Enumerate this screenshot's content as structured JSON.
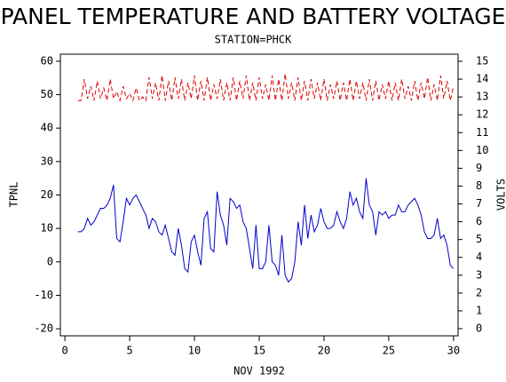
{
  "chart_data": {
    "type": "line",
    "title": "PANEL TEMPERATURE AND BATTERY VOLTAGE",
    "subtitle": "STATION=PHCK",
    "x_label": "NOV 1992",
    "y_label": "TPNL",
    "y2_label": "VOLTS",
    "x": [
      1,
      1.25,
      1.5,
      1.75,
      2,
      2.25,
      2.5,
      2.75,
      3,
      3.25,
      3.5,
      3.75,
      4,
      4.25,
      4.5,
      4.75,
      5,
      5.25,
      5.5,
      5.75,
      6,
      6.25,
      6.5,
      6.75,
      7,
      7.25,
      7.5,
      7.75,
      8,
      8.25,
      8.5,
      8.75,
      9,
      9.25,
      9.5,
      9.75,
      10,
      10.25,
      10.5,
      10.75,
      11,
      11.25,
      11.5,
      11.75,
      12,
      12.25,
      12.5,
      12.75,
      13,
      13.25,
      13.5,
      13.75,
      14,
      14.25,
      14.5,
      14.75,
      15,
      15.25,
      15.5,
      15.75,
      16,
      16.25,
      16.5,
      16.75,
      17,
      17.25,
      17.5,
      17.75,
      18,
      18.25,
      18.5,
      18.75,
      19,
      19.25,
      19.5,
      19.75,
      20,
      20.25,
      20.5,
      20.75,
      21,
      21.25,
      21.5,
      21.75,
      22,
      22.25,
      22.5,
      22.75,
      23,
      23.25,
      23.5,
      23.75,
      24,
      24.25,
      24.5,
      24.75,
      25,
      25.25,
      25.5,
      25.75,
      26,
      26.25,
      26.5,
      26.75,
      27,
      27.25,
      27.5,
      27.75,
      28,
      28.25,
      28.5,
      28.75,
      29,
      29.25,
      29.5,
      29.75,
      30
    ],
    "series": [
      {
        "name": "TPNL",
        "color": "#0000cc",
        "axis": "y",
        "dash": false,
        "values": [
          9,
          9,
          10,
          13,
          11,
          12,
          14,
          16,
          16,
          17,
          19,
          23,
          7,
          6,
          12,
          19,
          17,
          19,
          20,
          18,
          16,
          14,
          10,
          13,
          12,
          9,
          8,
          11,
          7,
          3,
          2,
          10,
          5,
          -2,
          -3,
          6,
          8,
          3,
          -1,
          13,
          15,
          4,
          3,
          21,
          14,
          11,
          5,
          19,
          18,
          16,
          17,
          12,
          10,
          4,
          -2,
          11,
          -2,
          -2,
          0,
          11,
          0,
          -1,
          -4,
          8,
          -4,
          -6,
          -5,
          0,
          12,
          5,
          17,
          7,
          14,
          9,
          11,
          16,
          12,
          10,
          10,
          11,
          15,
          12,
          10,
          13,
          21,
          17,
          19,
          15,
          13,
          25,
          17,
          15,
          8,
          15,
          14,
          15,
          13,
          14,
          14,
          17,
          15,
          15,
          17,
          18,
          19,
          17,
          14,
          9,
          7,
          7,
          8,
          13,
          7,
          8,
          5,
          -1,
          -2
        ]
      },
      {
        "name": "VOLTS",
        "color": "#dd0000",
        "axis": "y2",
        "dash": true,
        "values": [
          12.8,
          12.8,
          14.0,
          12.9,
          13.6,
          12.8,
          13.9,
          12.9,
          13.5,
          12.8,
          14.0,
          12.9,
          13.3,
          12.8,
          13.6,
          12.9,
          13.2,
          12.8,
          13.5,
          12.8,
          13.0,
          12.8,
          14.1,
          12.9,
          13.8,
          12.8,
          14.2,
          12.8,
          13.9,
          12.8,
          14.1,
          12.9,
          14.0,
          12.8,
          13.8,
          12.9,
          14.2,
          12.8,
          13.9,
          12.8,
          14.1,
          12.8,
          13.7,
          12.9,
          14.0,
          12.8,
          13.8,
          12.8,
          14.1,
          12.8,
          13.9,
          12.9,
          14.2,
          12.8,
          13.8,
          12.8,
          14.1,
          12.9,
          13.7,
          12.8,
          14.2,
          12.8,
          14.0,
          12.8,
          14.3,
          12.9,
          13.8,
          12.8,
          14.1,
          12.8,
          13.9,
          12.8,
          14.0,
          12.9,
          13.8,
          12.8,
          14.0,
          12.8,
          13.7,
          12.9,
          13.9,
          12.8,
          13.8,
          12.8,
          14.0,
          12.8,
          13.9,
          12.9,
          13.8,
          12.8,
          14.0,
          12.8,
          13.9,
          12.8,
          13.7,
          12.9,
          13.9,
          12.8,
          13.8,
          12.8,
          14.0,
          12.9,
          13.6,
          12.8,
          13.9,
          12.8,
          13.8,
          12.9,
          14.1,
          12.8,
          13.7,
          12.8,
          14.2,
          12.9,
          13.9,
          12.8,
          13.6
        ]
      }
    ],
    "xlim": [
      -0.35,
      30.35
    ],
    "xticks": [
      0,
      5,
      10,
      15,
      20,
      25,
      30
    ],
    "ylim": [
      -22.1,
      62.1
    ],
    "yticks": [
      -20,
      -10,
      0,
      10,
      20,
      30,
      40,
      50,
      60
    ],
    "y2lim": [
      -0.4,
      15.4
    ],
    "y2ticks": [
      0,
      1,
      2,
      3,
      4,
      5,
      6,
      7,
      8,
      9,
      10,
      11,
      12,
      13,
      14,
      15
    ]
  }
}
